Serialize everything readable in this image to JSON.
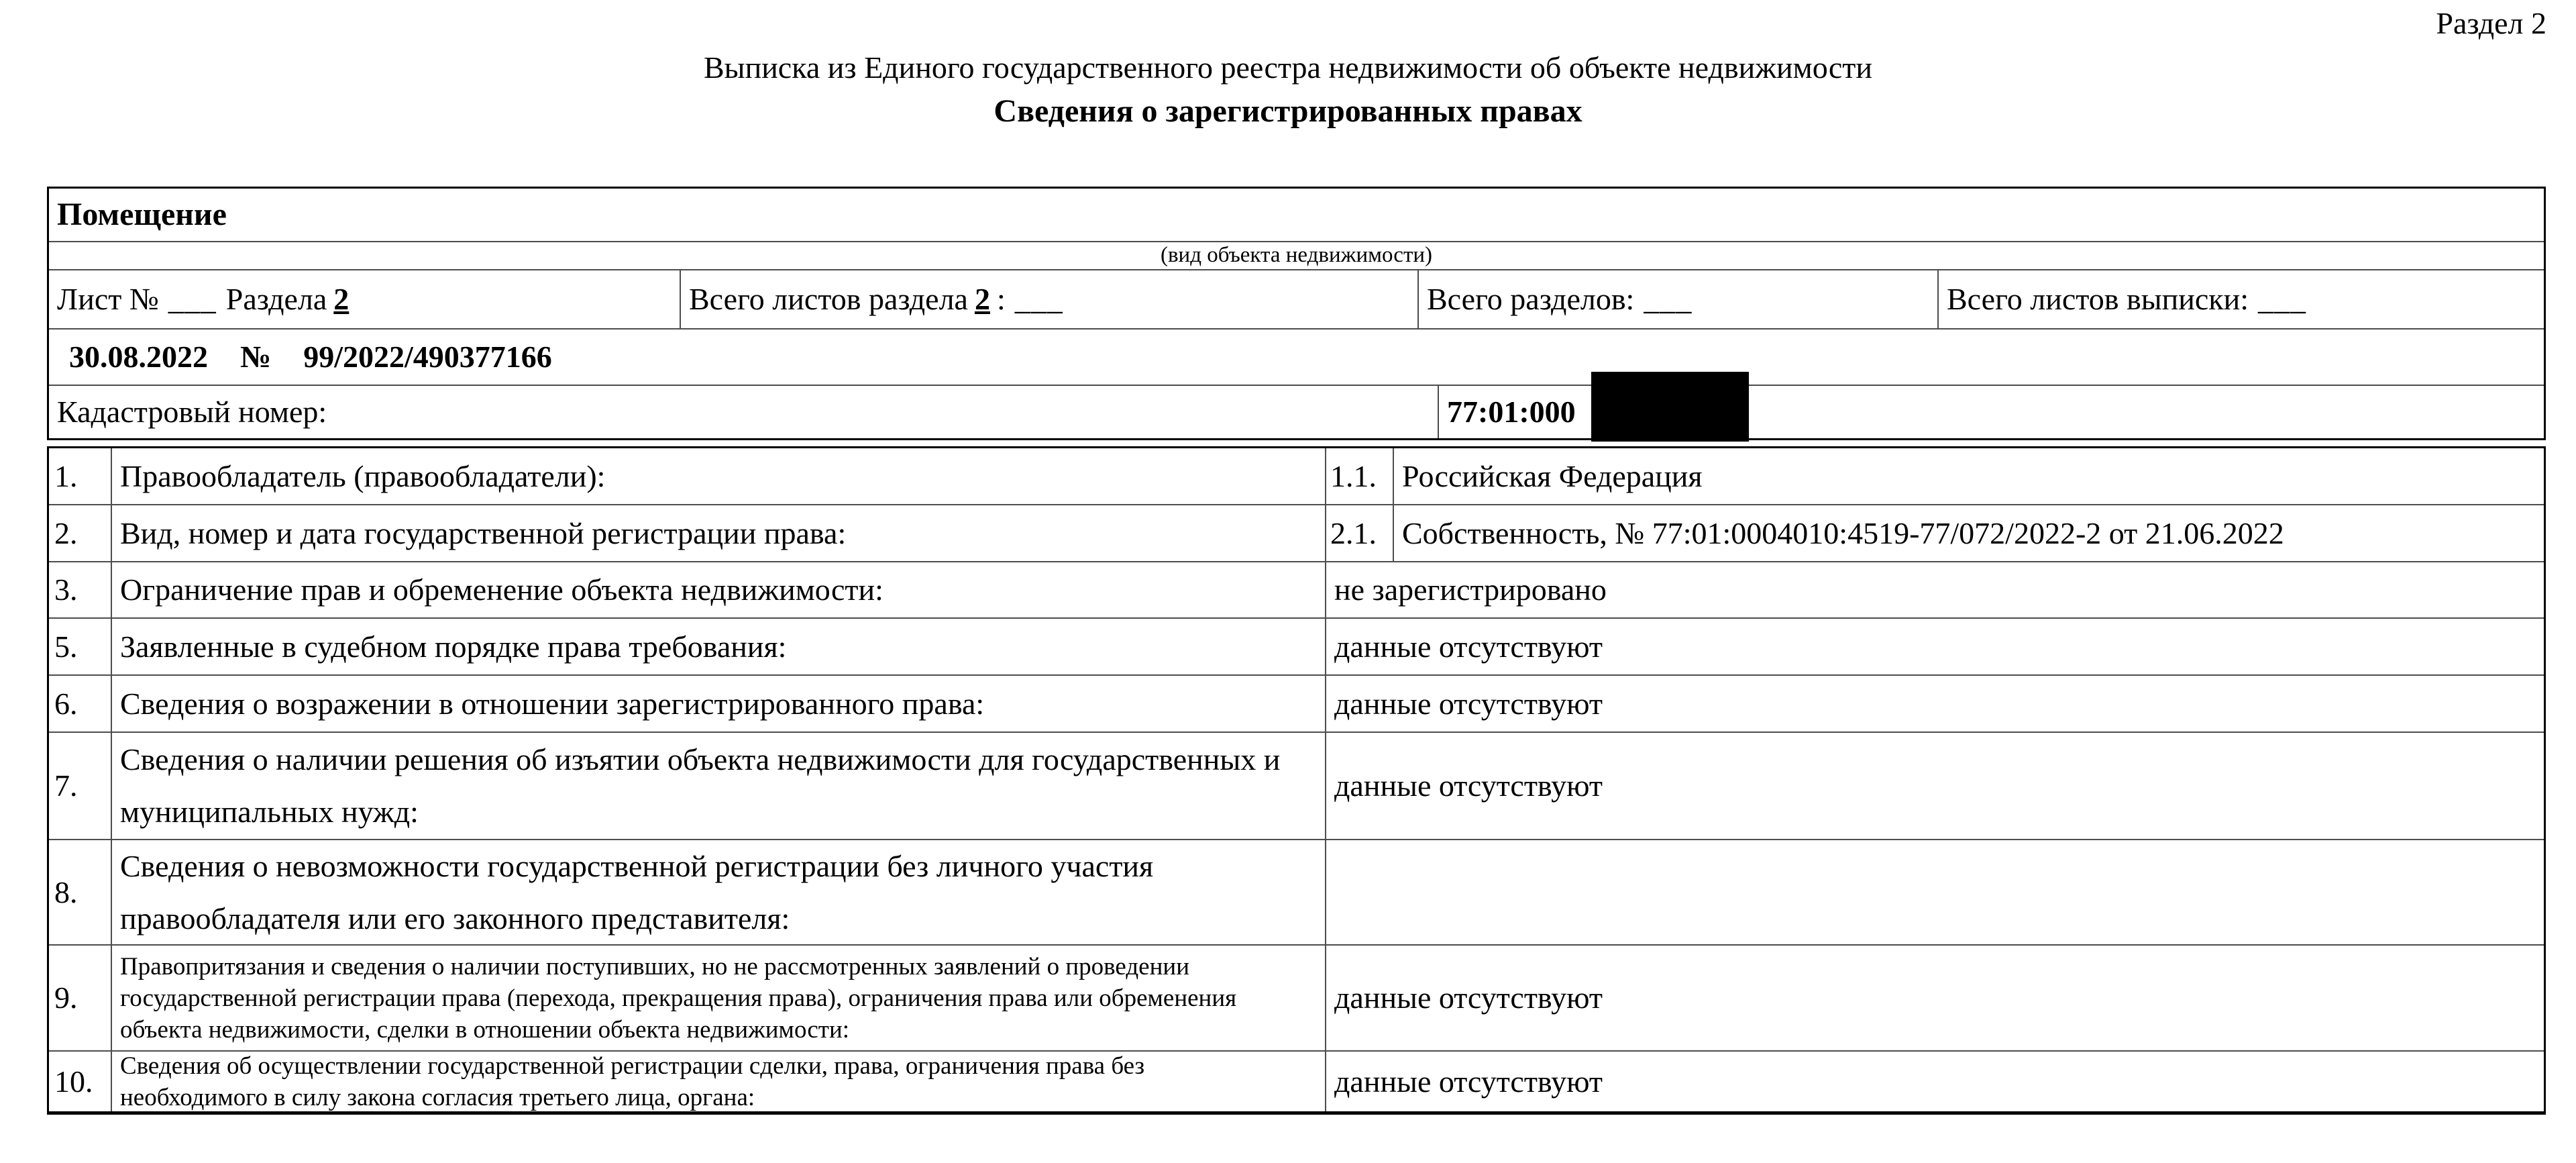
{
  "page": {
    "section_label": "Раздел 2"
  },
  "header": {
    "title": "Выписка из Единого государственного реестра недвижимости об объекте недвижимости",
    "subtitle": "Сведения о зарегистрированных правах"
  },
  "info_table": {
    "object_type": "Помещение",
    "object_type_caption": "(вид объекта недвижимости)",
    "sheet_row": {
      "sheet_label": "Лист №",
      "sheet_blank": "___",
      "section_word": "Раздела",
      "section_value": "2",
      "total_sheets_label": "Всего листов раздела",
      "total_sheets_value": "2",
      "total_sheets_colon": ":",
      "total_sheets_blank": "___",
      "total_sections_label": "Всего разделов:",
      "total_sections_blank": "___",
      "total_extract_sheets_label": "Всего листов выписки:",
      "total_extract_sheets_blank": "___"
    },
    "doc_row": {
      "date": "30.08.2022",
      "number_sign": "№",
      "number": "99/2022/490377166"
    },
    "cadastral_row": {
      "label": "Кадастровый номер:",
      "value_visible": "77:01:000",
      "redacted": true
    }
  },
  "rights_table": {
    "rows": [
      {
        "num": "1.",
        "label": "Правообладатель (правообладатели):",
        "sub_num": "1.1.",
        "value": "Российская Федерация"
      },
      {
        "num": "2.",
        "label": "Вид, номер и дата государственной регистрации права:",
        "sub_num": "2.1.",
        "value": "Собственность, № 77:01:0004010:4519-77/072/2022-2 от 21.06.2022"
      },
      {
        "num": "3.",
        "label": "Ограничение прав и обременение объекта недвижимости:",
        "value": "не зарегистрировано"
      },
      {
        "num": "5.",
        "label": "Заявленные в судебном порядке права требования:",
        "value": "данные отсутствуют"
      },
      {
        "num": "6.",
        "label": "Сведения о возражении в отношении зарегистрированного права:",
        "value": "данные отсутствуют"
      },
      {
        "num": "7.",
        "label": "Сведения о наличии решения об изъятии объекта недвижимости для государственных и муниципальных нужд:",
        "value": "данные отсутствуют"
      },
      {
        "num": "8.",
        "label": "Сведения о невозможности государственной регистрации без личного участия правообладателя или его законного представителя:",
        "value": ""
      },
      {
        "num": "9.",
        "label": "Правопритязания и сведения о наличии поступивших, но не рассмотренных заявлений о проведении государственной регистрации права (перехода, прекращения права), ограничения права или обременения объекта недвижимости, сделки в отношении объекта недвижимости:",
        "value": "данные отсутствуют"
      },
      {
        "num": "10.",
        "label": "Сведения об осуществлении государственной регистрации сделки, права, ограничения права без необходимого в силу закона согласия третьего лица, органа:",
        "value": "данные отсутствуют"
      }
    ]
  },
  "colors": {
    "border_outer": "#000000",
    "border_inner": "#4d4d4d",
    "redaction": "#000000"
  }
}
